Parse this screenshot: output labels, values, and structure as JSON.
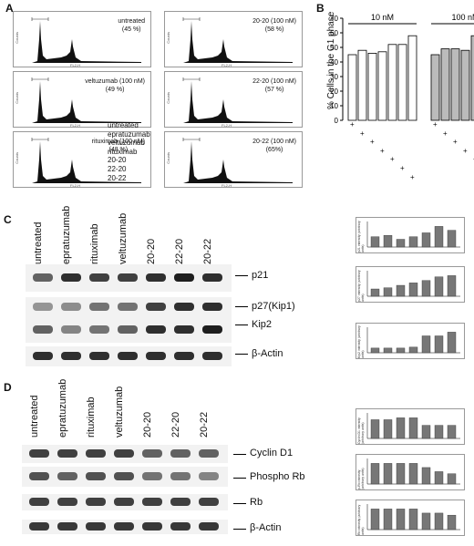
{
  "panels": {
    "A": "A",
    "B": "B",
    "C": "C",
    "D": "D"
  },
  "panelA": {
    "x_axis_label": "FL2-H",
    "y_axis_label": "Counts",
    "histograms": [
      {
        "label": "untreated",
        "pct": "(45 %)"
      },
      {
        "label": "20-20 (100 nM)",
        "pct": "(58 %)"
      },
      {
        "label": "veltuzumab (100 nM)",
        "pct": "(49 %)"
      },
      {
        "label": "22-20 (100 nM)",
        "pct": "(57 %)"
      },
      {
        "label": "rituximab (100 nM)",
        "pct": "(48 %)"
      },
      {
        "label": "20-22 (100 nM)",
        "pct": "(65%)"
      }
    ]
  },
  "chart_data": {
    "type": "bar",
    "ylabel": "% Cells in the G1 phase",
    "ylim": [
      0,
      70
    ],
    "yticks": [
      "0",
      "10",
      "20",
      "30",
      "40",
      "50",
      "60",
      "70"
    ],
    "groups": [
      {
        "name": "10 nM",
        "values": [
          45,
          48,
          46,
          47,
          52,
          52,
          58
        ]
      },
      {
        "name": "100 nM",
        "values": [
          45,
          49,
          49,
          48,
          58,
          57,
          65
        ]
      }
    ],
    "treatments": [
      "untreated",
      "epratuzumab",
      "veltuzumab",
      "rituximab",
      "20-20",
      "22-20",
      "20-22"
    ]
  },
  "panelC": {
    "lanes": [
      "untreated",
      "epratuzumab",
      "rituximab",
      "veltuzumab",
      "20-20",
      "22-20",
      "20-22"
    ],
    "proteins": [
      "p21",
      "p27(Kip1)",
      "Kip2",
      "β-Actin"
    ],
    "quant": [
      {
        "ylabel": "p21 intensity (arbitrary units)",
        "values": [
          0.8,
          0.9,
          0.6,
          0.8,
          1.1,
          1.6,
          1.3
        ]
      },
      {
        "ylabel": "p27 intensity (arbitrary units)",
        "values": [
          0.6,
          0.7,
          0.9,
          1.1,
          1.3,
          1.6,
          1.7
        ]
      },
      {
        "ylabel": "Kip2 intensity (arbitrary units)",
        "values": [
          0.5,
          0.5,
          0.5,
          0.6,
          1.8,
          1.8,
          2.2
        ]
      }
    ]
  },
  "panelD": {
    "lanes": [
      "untreated",
      "epratuzumab",
      "rituximab",
      "veltuzumab",
      "20-20",
      "22-20",
      "20-22"
    ],
    "proteins": [
      "Cyclin D1",
      "Phospho Rb",
      "Rb",
      "β-Actin"
    ],
    "quant": [
      {
        "ylabel": "Cyclin D1 intensity (arbitrary units)",
        "values": [
          1.0,
          1.0,
          1.1,
          1.1,
          0.7,
          0.7,
          0.7
        ]
      },
      {
        "ylabel": "p-Rb intensity (arbitrary units)",
        "values": [
          1.0,
          1.0,
          1.0,
          1.0,
          0.8,
          0.6,
          0.5
        ]
      },
      {
        "ylabel": "Rb intensity (arbitrary units)",
        "values": [
          1.0,
          1.0,
          1.0,
          1.0,
          0.8,
          0.8,
          0.7
        ]
      }
    ]
  }
}
